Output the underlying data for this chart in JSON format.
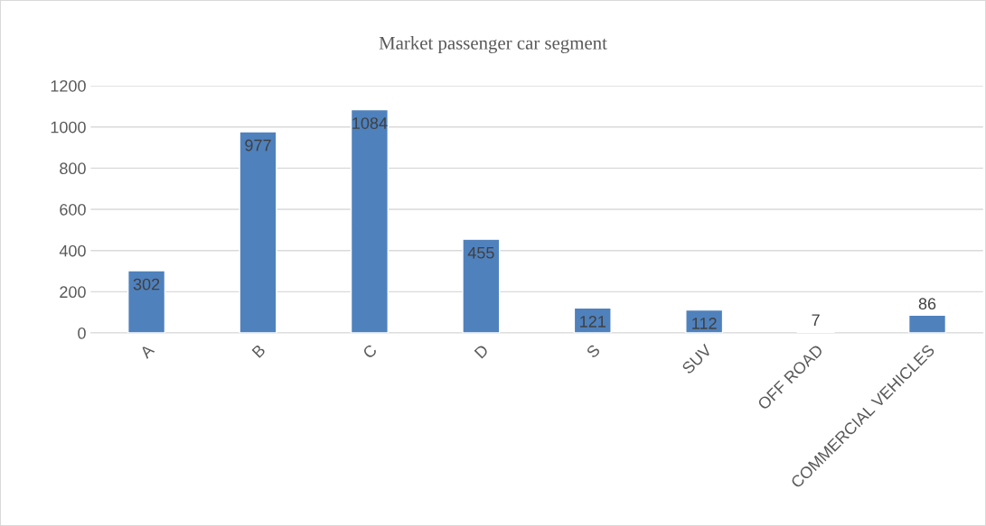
{
  "chart_data": {
    "type": "bar",
    "title": "Market passenger car segment",
    "categories": [
      "A",
      "B",
      "C",
      "D",
      "S",
      "SUV",
      "OFF ROAD",
      "COMMERCIAL VEHICLES"
    ],
    "values": [
      302,
      977,
      1084,
      455,
      121,
      112,
      7,
      86
    ],
    "color": "#4f81bd",
    "ylim": [
      0,
      1200
    ],
    "yticks": [
      0,
      200,
      400,
      600,
      800,
      1000,
      1200
    ],
    "grid": "y",
    "data_labels": true,
    "legend": false
  }
}
